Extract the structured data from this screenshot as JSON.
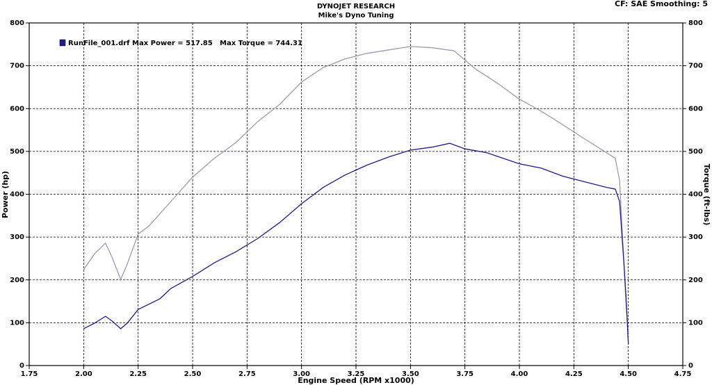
{
  "chart_data": {
    "type": "line",
    "title": "DYNOJET RESEARCH",
    "subtitle": "Mike's Dyno Tuning",
    "settings_text": "CF: SAE  Smoothing: 5",
    "x_label": "Engine Speed (RPM x1000)",
    "y_label": "Power (hp)",
    "y2_label": "Torque (ft-lbs)",
    "grid": true,
    "xlim": [
      1.75,
      4.75
    ],
    "xticks": [
      {
        "value": 1.75,
        "label": "1.75"
      },
      {
        "value": 2,
        "label": "2.00"
      },
      {
        "value": 2.25,
        "label": "2.25"
      },
      {
        "value": 2.5,
        "label": "2.50"
      },
      {
        "value": 2.75,
        "label": "2.75"
      },
      {
        "value": 3,
        "label": "3.00"
      },
      {
        "value": 3.25,
        "label": "3.25"
      },
      {
        "value": 3.5,
        "label": "3.50"
      },
      {
        "value": 3.75,
        "label": "3.75"
      },
      {
        "value": 4,
        "label": "4.00"
      },
      {
        "value": 4.25,
        "label": "4.25"
      },
      {
        "value": 4.5,
        "label": "4.50"
      },
      {
        "value": 4.75,
        "label": "4.75"
      }
    ],
    "ylim": [
      0,
      800
    ],
    "yticks": [
      0,
      100,
      200,
      300,
      400,
      500,
      600,
      700,
      800
    ],
    "y2lim": [
      0,
      800
    ],
    "y2ticks": [
      0,
      100,
      200,
      300,
      400,
      500,
      600,
      700,
      800
    ],
    "series": [
      {
        "name": "RunFile_001.drf Max Power = 517.85",
        "color": "#1c1c8a",
        "x": [
          2.0,
          2.05,
          2.1,
          2.13,
          2.17,
          2.2,
          2.25,
          2.35,
          2.4,
          2.5,
          2.6,
          2.7,
          2.8,
          2.9,
          3.0,
          3.1,
          3.2,
          3.3,
          3.4,
          3.5,
          3.6,
          3.68,
          3.75,
          3.85,
          4.0,
          4.1,
          4.2,
          4.3,
          4.4,
          4.44,
          4.46,
          4.48,
          4.49,
          4.5
        ],
        "values": [
          86,
          99,
          115,
          104,
          86,
          99,
          131,
          156,
          180,
          208,
          240,
          266,
          297,
          334,
          378,
          416,
          445,
          468,
          487,
          503,
          510,
          519,
          506,
          497,
          471,
          461,
          442,
          429,
          416,
          412,
          383,
          237,
          156,
          50
        ]
      },
      {
        "name": "Max Torque = 744.31",
        "color": "#9a9ab8",
        "axis": "y2",
        "x": [
          2.0,
          2.05,
          2.1,
          2.13,
          2.17,
          2.2,
          2.25,
          2.3,
          2.4,
          2.5,
          2.6,
          2.7,
          2.8,
          2.9,
          3.0,
          3.1,
          3.2,
          3.3,
          3.4,
          3.5,
          3.6,
          3.7,
          3.8,
          3.9,
          4.0,
          4.1,
          4.2,
          4.3,
          4.4,
          4.44,
          4.46,
          4.48,
          4.49,
          4.5
        ],
        "values": [
          224,
          261,
          286,
          253,
          201,
          237,
          307,
          326,
          383,
          440,
          484,
          521,
          570,
          610,
          662,
          696,
          716,
          729,
          737,
          745,
          742,
          735,
          692,
          659,
          622,
          594,
          562,
          529,
          497,
          484,
          432,
          237,
          140,
          75
        ]
      }
    ]
  }
}
